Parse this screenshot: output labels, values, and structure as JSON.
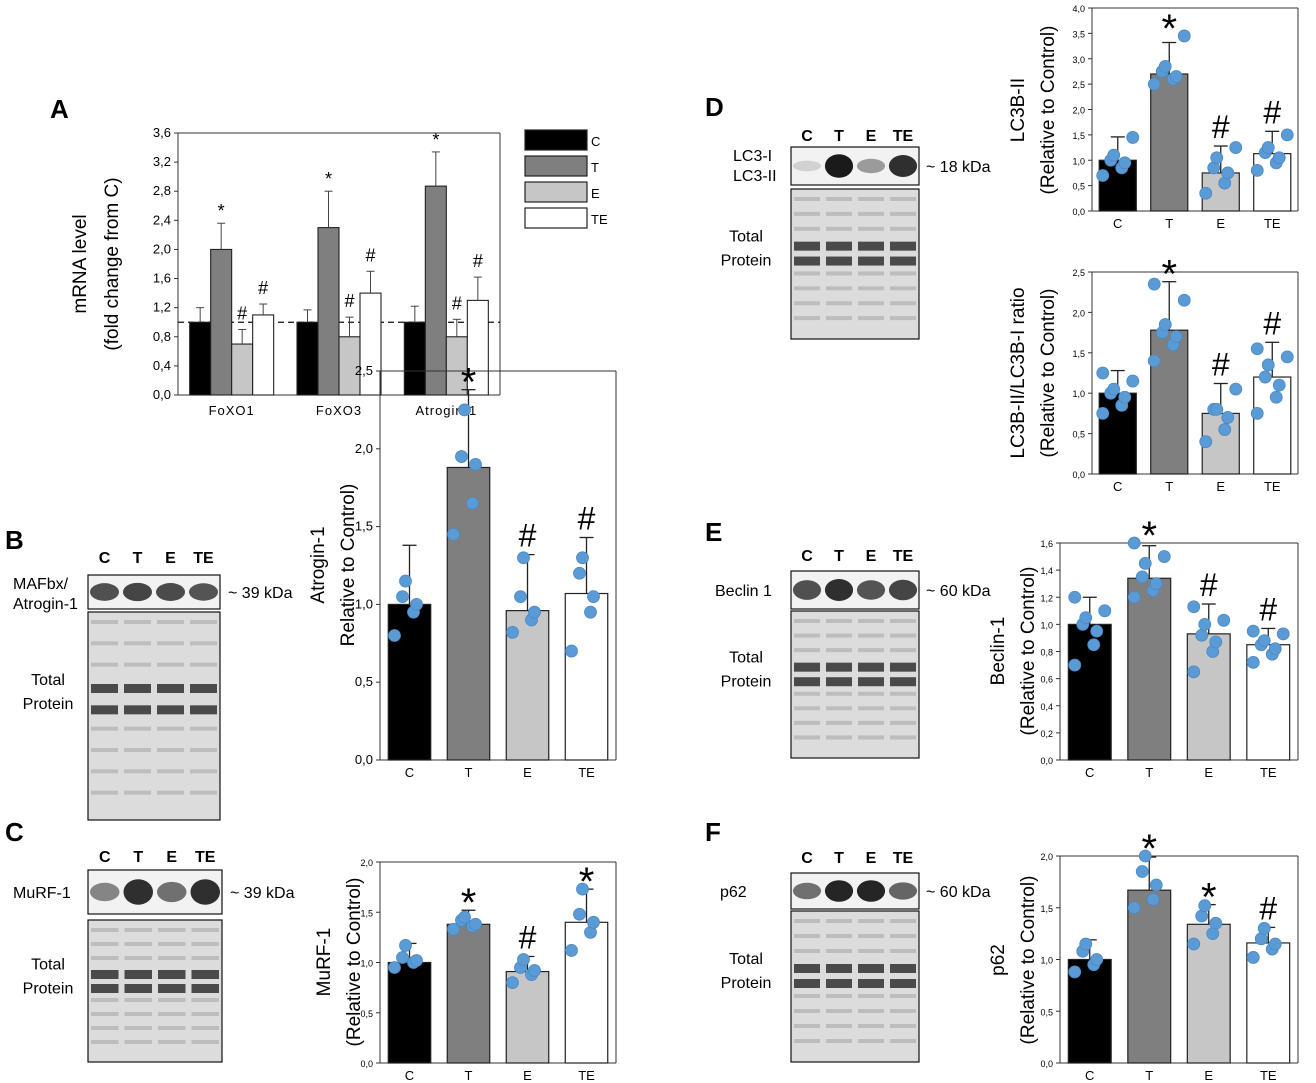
{
  "colors": {
    "C": "#000000",
    "T": "#7f7f7f",
    "E": "#c6c6c6",
    "TE": "#ffffff",
    "dots": "#5b9bd5"
  },
  "chart_data": [
    {
      "id": "A",
      "panel": "A",
      "type": "bar",
      "ylabel": "mRNA level",
      "ylabel2": "(fold change from C)",
      "ylim": [
        0,
        3.6
      ],
      "yticks": [
        "0,0",
        "0,4",
        "0,8",
        "1,2",
        "1,6",
        "2,0",
        "2,4",
        "2,8",
        "3,2",
        "3,6"
      ],
      "groups": [
        "FoXO1",
        "FoXO3",
        "Atrogin-1"
      ],
      "legend": [
        "C",
        "T",
        "E",
        "TE"
      ],
      "reference_line": 1.0,
      "series": [
        {
          "name": "C",
          "values": [
            1.0,
            1.0,
            1.0
          ],
          "errors": [
            0.2,
            0.17,
            0.22
          ],
          "marks": [
            "",
            "",
            ""
          ]
        },
        {
          "name": "T",
          "values": [
            2.0,
            2.3,
            2.87
          ],
          "errors": [
            0.36,
            0.5,
            0.47
          ],
          "marks": [
            "*",
            "*",
            "*"
          ]
        },
        {
          "name": "E",
          "values": [
            0.7,
            0.8,
            0.8
          ],
          "errors": [
            0.2,
            0.27,
            0.24
          ],
          "marks": [
            "#",
            "#",
            "#"
          ]
        },
        {
          "name": "TE",
          "values": [
            1.1,
            1.4,
            1.3
          ],
          "errors": [
            0.15,
            0.3,
            0.32
          ],
          "marks": [
            "#",
            "#",
            "#"
          ]
        }
      ]
    },
    {
      "id": "B",
      "panel": "B",
      "type": "bar",
      "ylabel": "Atrogin-1",
      "ylabel2": "Relative to Control)",
      "ylim": [
        0,
        2.5
      ],
      "yticks": [
        "0,0",
        "0,5",
        "1,0",
        "1,5",
        "2,0",
        "2,5"
      ],
      "categories": [
        "C",
        "T",
        "E",
        "TE"
      ],
      "values": [
        1.0,
        1.88,
        0.96,
        1.07
      ],
      "errors": [
        0.38,
        0.5,
        0.36,
        0.36
      ],
      "marks": [
        "",
        "*",
        "#",
        "#"
      ],
      "points": [
        [
          0.8,
          0.95,
          1.0,
          1.05,
          1.15
        ],
        [
          1.45,
          1.65,
          1.9,
          1.95,
          2.25
        ],
        [
          0.82,
          0.9,
          0.95,
          1.05,
          1.3
        ],
        [
          0.7,
          0.95,
          1.05,
          1.2,
          1.3
        ]
      ]
    },
    {
      "id": "C",
      "panel": "C",
      "type": "bar",
      "ylabel": "MuRF-1",
      "ylabel2": "(Relative to Control)",
      "ylim": [
        0,
        2.0
      ],
      "yticks": [
        "0,0",
        "0,5",
        "1,0",
        "1,5",
        "2,0"
      ],
      "categories": [
        "C",
        "T",
        "E",
        "TE"
      ],
      "values": [
        1.0,
        1.38,
        0.91,
        1.4
      ],
      "errors": [
        0.19,
        0.14,
        0.15,
        0.33
      ],
      "marks": [
        "",
        "*",
        "#",
        "*"
      ],
      "points": [
        [
          0.95,
          1.0,
          1.02,
          1.05,
          1.17
        ],
        [
          1.33,
          1.36,
          1.38,
          1.42,
          1.45
        ],
        [
          0.8,
          0.88,
          0.92,
          0.95,
          1.03
        ],
        [
          1.12,
          1.3,
          1.4,
          1.48,
          1.73
        ]
      ]
    },
    {
      "id": "D1",
      "panel": "D",
      "type": "bar",
      "ylabel": "LC3B-II",
      "ylabel2": "(Relative to Control)",
      "ylim": [
        0,
        4.0
      ],
      "yticks": [
        "0,0",
        "0,5",
        "1,0",
        "1,5",
        "2,0",
        "2,5",
        "3,0",
        "3,5",
        "4,0"
      ],
      "categories": [
        "C",
        "T",
        "E",
        "TE"
      ],
      "values": [
        1.0,
        2.7,
        0.75,
        1.13
      ],
      "errors": [
        0.46,
        0.62,
        0.53,
        0.44
      ],
      "marks": [
        "",
        "*",
        "#",
        "#"
      ],
      "points": [
        [
          0.7,
          0.85,
          0.95,
          1.0,
          1.1,
          1.45
        ],
        [
          2.5,
          2.6,
          2.65,
          2.75,
          2.85,
          3.45
        ],
        [
          0.35,
          0.55,
          0.75,
          0.85,
          1.05,
          1.25
        ],
        [
          0.8,
          0.95,
          1.05,
          1.15,
          1.25,
          1.5
        ]
      ]
    },
    {
      "id": "D2",
      "panel": "D",
      "type": "bar",
      "ylabel": "LC3B-II/LC3B-I ratio",
      "ylabel2": "(Relative to Control)",
      "ylim": [
        0,
        2.5
      ],
      "yticks": [
        "0,0",
        "0,5",
        "1,0",
        "1,5",
        "2,0",
        "2,5"
      ],
      "categories": [
        "C",
        "T",
        "E",
        "TE"
      ],
      "values": [
        1.0,
        1.78,
        0.75,
        1.2
      ],
      "errors": [
        0.28,
        0.6,
        0.37,
        0.43
      ],
      "marks": [
        "",
        "*",
        "#",
        "#"
      ],
      "points": [
        [
          0.75,
          0.85,
          0.95,
          1.0,
          1.05,
          1.15,
          1.25
        ],
        [
          1.4,
          1.6,
          1.7,
          1.75,
          1.85,
          2.15,
          2.35
        ],
        [
          0.4,
          0.55,
          0.7,
          0.8,
          0.8,
          1.05
        ],
        [
          0.75,
          0.95,
          1.1,
          1.2,
          1.35,
          1.45,
          1.55
        ]
      ]
    },
    {
      "id": "E",
      "panel": "E",
      "type": "bar",
      "ylabel": "Beclin-1",
      "ylabel2": "(Relative to Control)",
      "ylim": [
        0,
        1.6
      ],
      "yticks": [
        "0,0",
        "0,2",
        "0,4",
        "0,6",
        "0,8",
        "1,0",
        "1,2",
        "1,4",
        "1,6"
      ],
      "categories": [
        "C",
        "T",
        "E",
        "TE"
      ],
      "values": [
        1.0,
        1.34,
        0.93,
        0.85
      ],
      "errors": [
        0.2,
        0.24,
        0.22,
        0.12
      ],
      "marks": [
        "",
        "*",
        "#",
        "#"
      ],
      "points": [
        [
          0.7,
          0.85,
          0.95,
          1.0,
          1.05,
          1.1,
          1.2
        ],
        [
          1.2,
          1.25,
          1.3,
          1.35,
          1.45,
          1.5,
          1.6
        ],
        [
          0.65,
          0.8,
          0.87,
          0.92,
          1.0,
          1.03,
          1.13
        ],
        [
          0.72,
          0.78,
          0.82,
          0.85,
          0.88,
          0.93,
          0.95
        ]
      ]
    },
    {
      "id": "F",
      "panel": "F",
      "type": "bar",
      "ylabel": "p62",
      "ylabel2": "(Relative to Control)",
      "ylim": [
        0,
        2.0
      ],
      "yticks": [
        "0,0",
        "0,5",
        "1,0",
        "1,5",
        "2,0"
      ],
      "categories": [
        "C",
        "T",
        "E",
        "TE"
      ],
      "values": [
        1.0,
        1.67,
        1.34,
        1.16
      ],
      "errors": [
        0.19,
        0.32,
        0.19,
        0.15
      ],
      "marks": [
        "",
        "*",
        "*",
        "#"
      ],
      "points": [
        [
          0.88,
          0.95,
          1.0,
          1.08,
          1.15
        ],
        [
          1.5,
          1.58,
          1.72,
          1.85,
          2.0
        ],
        [
          1.15,
          1.25,
          1.35,
          1.42,
          1.52
        ],
        [
          1.02,
          1.1,
          1.15,
          1.2,
          1.3
        ]
      ]
    }
  ],
  "blots": [
    {
      "panel": "B",
      "lanes": [
        "C",
        "T",
        "E",
        "TE"
      ],
      "band_label": "MAFbx/",
      "band_label2": "Atrogin-1",
      "size": "~ 39 kDa",
      "total": "Total",
      "total2": "Protein",
      "band": [
        0.7,
        0.75,
        0.72,
        0.68
      ]
    },
    {
      "panel": "C",
      "lanes": [
        "C",
        "T",
        "E",
        "TE"
      ],
      "band_label": "MuRF-1",
      "band_label2": "",
      "size": "~ 39 kDa",
      "total": "Total",
      "total2": "Protein",
      "band": [
        0.45,
        0.85,
        0.55,
        0.85
      ]
    },
    {
      "panel": "D",
      "lanes": [
        "C",
        "T",
        "E",
        "TE"
      ],
      "band_label": "LC3-I",
      "band_label2": "LC3-II",
      "size": "~ 18 kDa",
      "total": "Total",
      "total2": "Protein",
      "band": [
        0.1,
        0.95,
        0.35,
        0.85
      ]
    },
    {
      "panel": "E",
      "lanes": [
        "C",
        "T",
        "E",
        "TE"
      ],
      "band_label": "Beclin 1",
      "band_label2": "",
      "size": "~ 60 kDa",
      "total": "Total",
      "total2": "Protein",
      "band": [
        0.7,
        0.85,
        0.68,
        0.75
      ]
    },
    {
      "panel": "F",
      "lanes": [
        "C",
        "T",
        "E",
        "TE"
      ],
      "band_label": "p62",
      "band_label2": "",
      "size": "~ 60 kDa",
      "total": "Total",
      "total2": "Protein",
      "band": [
        0.55,
        0.9,
        0.9,
        0.6
      ]
    }
  ]
}
